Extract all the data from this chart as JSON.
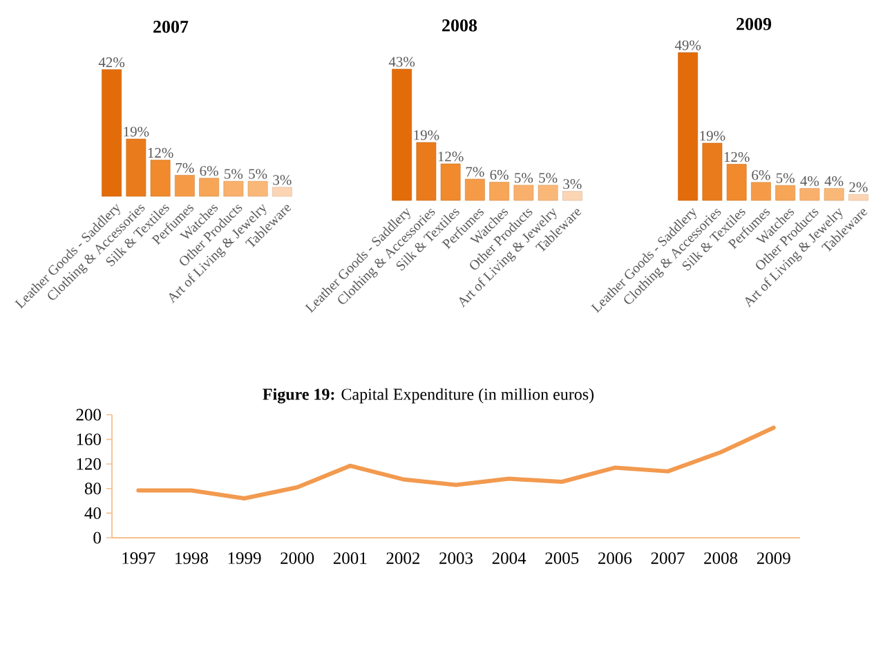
{
  "chart_data": [
    {
      "type": "bar",
      "title": "2007",
      "categories": [
        "Leather Goods - Saddlery",
        "Clothing & Accessories",
        "Silk & Textiles",
        "Perfumes",
        "Watches",
        "Other Products",
        "Art of Living & Jewelry",
        "Tableware"
      ],
      "values": [
        42,
        19,
        12,
        7,
        6,
        5,
        5,
        3
      ],
      "value_labels": [
        "42%",
        "19%",
        "12%",
        "7%",
        "6%",
        "5%",
        "5%",
        "3%"
      ],
      "colors": [
        "#e36c0a",
        "#ea7b1c",
        "#f08a2c",
        "#f59b48",
        "#f7a557",
        "#f9b06c",
        "#fab878",
        "#fcd5b4"
      ],
      "tick_labels": "x"
    },
    {
      "type": "bar",
      "title": "2008",
      "categories": [
        "Leather Goods - Saddlery",
        "Clothing & Accessories",
        "Silk & Textiles",
        "Perfumes",
        "Watches",
        "Other Products",
        "Art of Living & Jewelry",
        "Tableware"
      ],
      "values": [
        43,
        19,
        12,
        7,
        6,
        5,
        5,
        3
      ],
      "value_labels": [
        "43%",
        "19%",
        "12%",
        "7%",
        "6%",
        "5%",
        "5%",
        "3%"
      ],
      "colors": [
        "#e36c0a",
        "#ea7b1c",
        "#f08a2c",
        "#f59b48",
        "#f7a557",
        "#f9b06c",
        "#fab878",
        "#fcd5b4"
      ],
      "tick_labels": "x"
    },
    {
      "type": "bar",
      "title": "2009",
      "categories": [
        "Leather Goods - Saddlery",
        "Clothing & Accessories",
        "Silk & Textiles",
        "Perfumes",
        "Watches",
        "Other Products",
        "Art of Living & Jewelry",
        "Tableware"
      ],
      "values": [
        49,
        19,
        12,
        6,
        5,
        4,
        4,
        2
      ],
      "value_labels": [
        "49%",
        "19%",
        "12%",
        "6%",
        "5%",
        "4%",
        "4%",
        "2%"
      ],
      "colors": [
        "#e36c0a",
        "#ea7b1c",
        "#f08a2c",
        "#f59b48",
        "#f7a557",
        "#f9b06c",
        "#fab878",
        "#fcd5b4"
      ],
      "tick_labels": "x"
    },
    {
      "type": "line",
      "title": "**Figure 19:** Capital Expenditure (in million euros)",
      "categories": [
        "1997",
        "1998",
        "1999",
        "2000",
        "2001",
        "2002",
        "2003",
        "2004",
        "2005",
        "2006",
        "2007",
        "2008",
        "2009"
      ],
      "values": [
        77,
        77,
        64,
        82,
        117,
        95,
        86,
        96,
        91,
        114,
        108,
        139,
        179
      ],
      "color": "#f29a4f",
      "ylim": [
        0,
        200
      ],
      "yticks": [
        0,
        40,
        80,
        120,
        160,
        200
      ]
    }
  ]
}
